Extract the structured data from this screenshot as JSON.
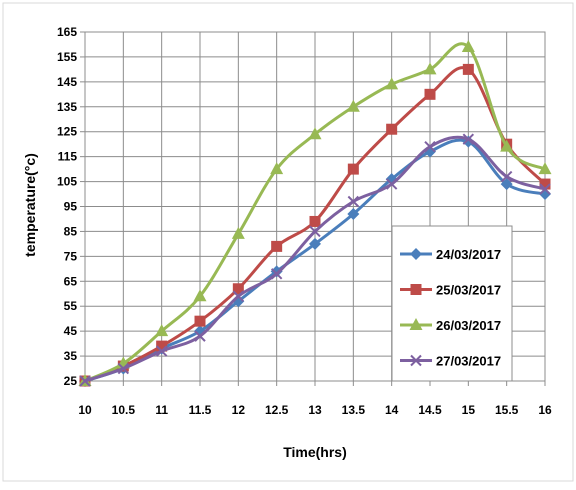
{
  "chart_data": {
    "type": "line",
    "title": "",
    "xlabel": "Time(hrs)",
    "ylabel": "temperature(°c)",
    "x": [
      10,
      10.5,
      11,
      11.5,
      12,
      12.5,
      13,
      13.5,
      14,
      14.5,
      15,
      15.5,
      16
    ],
    "x_tick_labels": [
      "10",
      "10.5",
      "11",
      "11.5",
      "12",
      "12.5",
      "13",
      "13.5",
      "14",
      "14.5",
      "15",
      "15.5",
      "16"
    ],
    "ylim": [
      25,
      165
    ],
    "y_ticks": [
      25,
      35,
      45,
      55,
      65,
      75,
      85,
      95,
      105,
      115,
      125,
      135,
      145,
      155,
      165
    ],
    "grid": true,
    "legend_position": "lower-right",
    "series": [
      {
        "name": "24/03/2017",
        "color": "#4a7ebb",
        "marker": "diamond",
        "values": [
          25,
          30,
          38,
          45,
          57,
          69,
          80,
          92,
          106,
          117,
          121,
          104,
          100
        ]
      },
      {
        "name": "25/03/2017",
        "color": "#be4b48",
        "marker": "square",
        "values": [
          25,
          31,
          39,
          49,
          62,
          79,
          89,
          110,
          126,
          140,
          150,
          120,
          104
        ]
      },
      {
        "name": "26/03/2017",
        "color": "#98b954",
        "marker": "triangle",
        "values": [
          25,
          32,
          45,
          59,
          84,
          110,
          124,
          135,
          144,
          150,
          159,
          119,
          110
        ]
      },
      {
        "name": "27/03/2017",
        "color": "#7d60a0",
        "marker": "x",
        "values": [
          25,
          30,
          37,
          43,
          59,
          68,
          85,
          97,
          104,
          119,
          122,
          107,
          102
        ]
      }
    ]
  }
}
